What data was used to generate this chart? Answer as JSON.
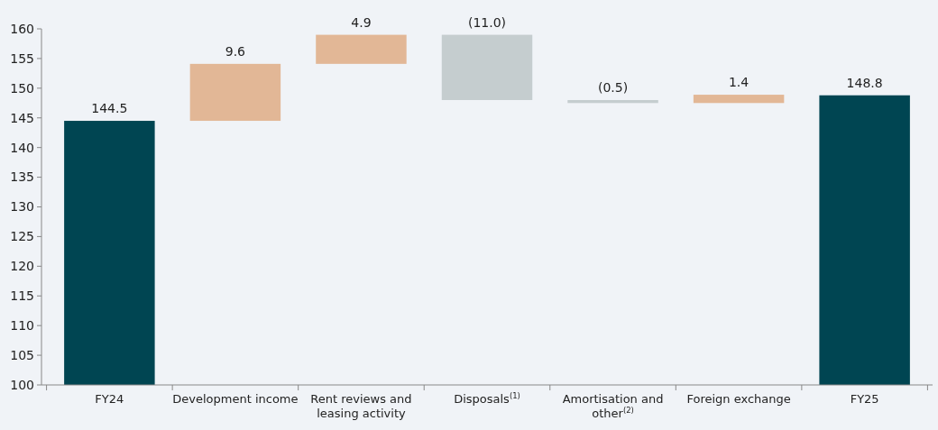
{
  "chart_data": {
    "type": "bar",
    "categories": [
      "FY24",
      "Development income",
      "Rent reviews and leasing activity",
      "Disposals$^{(1)}$",
      "Amortisation and other$^{(2)}$",
      "Foreign exchange",
      "FY25"
    ],
    "values": [
      144.5,
      9.6,
      4.9,
      -11.0,
      -0.5,
      1.4,
      148.8
    ],
    "base": [
      null,
      144.5,
      154.1,
      159.0,
      148.0,
      147.5,
      null
    ],
    "colors": [
      "#004552",
      "#e2b796",
      "#e2b796",
      "#c5cdcf",
      "#c5cdcf",
      "#e2b796",
      "#004552"
    ],
    "value_labels": [
      "144.5",
      "9.6",
      "4.9",
      "(11.0)",
      "(0.5)",
      "1.4",
      "148.8"
    ],
    "ylim": [
      100,
      160
    ],
    "yticks": [
      100,
      105,
      110,
      115,
      120,
      125,
      130,
      135,
      140,
      145,
      150,
      155,
      160
    ],
    "grid": false
  }
}
